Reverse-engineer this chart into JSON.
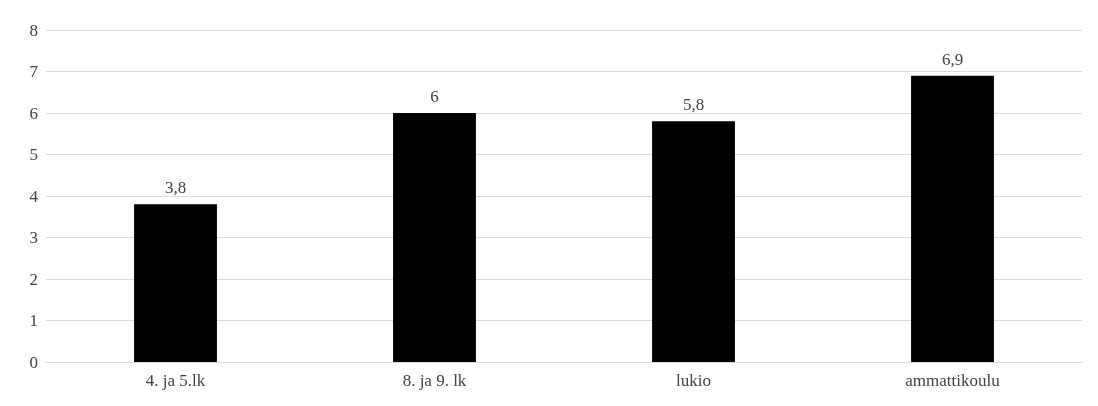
{
  "chart_data": {
    "type": "bar",
    "categories": [
      "4. ja 5.lk",
      "8. ja 9. lk",
      "lukio",
      "ammattikoulu"
    ],
    "values": [
      3.8,
      6,
      5.8,
      6.9
    ],
    "value_labels": [
      "3,8",
      "6",
      "5,8",
      "6,9"
    ],
    "color": "#000000",
    "ylim": [
      0,
      8
    ],
    "yticks": [
      0,
      1,
      2,
      3,
      4,
      5,
      6,
      7,
      8
    ],
    "grid": "y"
  }
}
